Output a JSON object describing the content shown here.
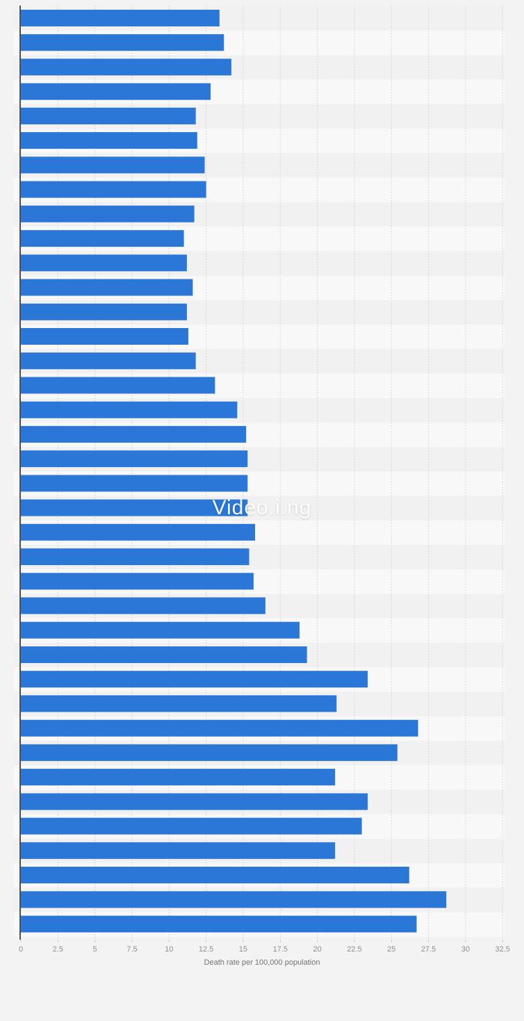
{
  "chart_data": {
    "type": "bar",
    "orientation": "horizontal",
    "title": "",
    "xlabel": "Death rate per 100,000 population",
    "ylabel": "",
    "xlim": [
      0,
      32.5
    ],
    "x_ticks": [
      0,
      2.5,
      5,
      7.5,
      10,
      12.5,
      15,
      17.5,
      20,
      22.5,
      25,
      27.5,
      30,
      32.5
    ],
    "x_tick_labels": [
      "0",
      "2.5",
      "5",
      "7.5",
      "10",
      "12.5",
      "15",
      "17.5",
      "20",
      "22.5",
      "25",
      "27.5",
      "30",
      "32.5"
    ],
    "grid": "vertical-dashed",
    "legend": "none",
    "category_labels_visible": false,
    "values": [
      13.4,
      13.7,
      14.2,
      12.8,
      11.8,
      11.9,
      12.4,
      12.5,
      11.7,
      11.0,
      11.2,
      11.6,
      11.2,
      11.3,
      11.8,
      13.1,
      14.6,
      15.2,
      15.3,
      15.3,
      15.3,
      15.8,
      15.4,
      15.7,
      16.5,
      18.8,
      19.3,
      23.4,
      21.3,
      26.8,
      25.4,
      21.2,
      23.4,
      23.0,
      21.2,
      26.2,
      28.7,
      26.7
    ]
  },
  "watermark": {
    "text": "Video.i.ng"
  },
  "colors": {
    "bar": "#2b77d8",
    "page_bg": "#f3f3f3",
    "band_dark": "#f1f1f1",
    "band_light": "#f8f8f8",
    "axis_line": "#4d5154",
    "gridline": "#d6d6d6",
    "tick_mark": "#c9c9c9",
    "tick_label": "#8f8f8f",
    "axis_title": "#737373",
    "watermark": "#ffffff"
  }
}
